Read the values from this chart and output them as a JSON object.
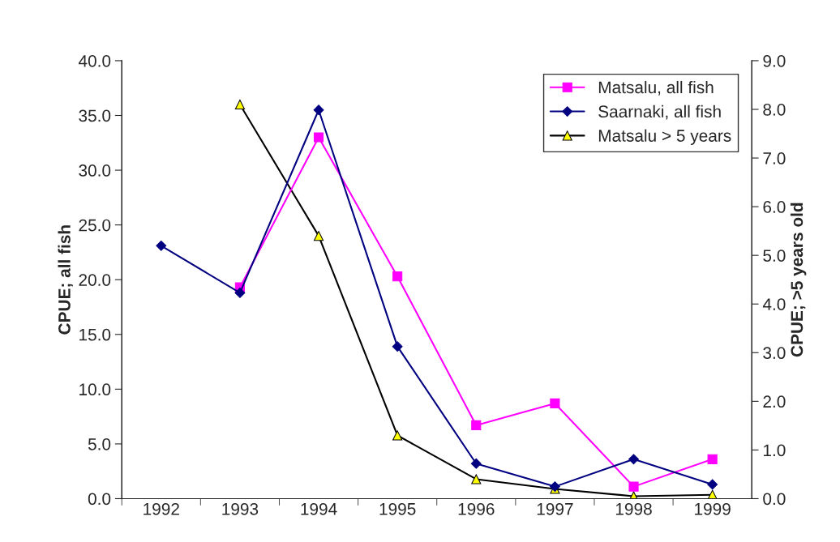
{
  "chart_data": {
    "type": "line",
    "ylabel": "CPUE; all fish",
    "y2label": "CPUE; >5 years old",
    "categories": [
      "1992",
      "1993",
      "1994",
      "1995",
      "1996",
      "1997",
      "1998",
      "1999"
    ],
    "series": [
      {
        "name": "Matsalu, all fish",
        "color": "#ff00ff",
        "marker": "square",
        "values": [
          null,
          19.3,
          33.0,
          20.3,
          6.7,
          8.7,
          1.1,
          3.6
        ]
      },
      {
        "name": "Saarnaki, all fish",
        "color": "#000080",
        "marker": "diamond",
        "values": [
          23.1,
          18.8,
          35.5,
          13.9,
          3.2,
          1.1,
          3.6,
          1.3
        ]
      },
      {
        "name": "Matsalu > 5 years",
        "color": "#000000",
        "marker": "triangle",
        "axis": "y2",
        "values": [
          null,
          8.1,
          5.4,
          1.3,
          0.4,
          0.2,
          0.05,
          0.08
        ]
      }
    ],
    "ylim": [
      0,
      40
    ],
    "yticks": [
      {
        "value": 0,
        "label": "0.0"
      },
      {
        "value": 5,
        "label": "5.0"
      },
      {
        "value": 10,
        "label": "10.0"
      },
      {
        "value": 15,
        "label": "15.0"
      },
      {
        "value": 20,
        "label": "20.0"
      },
      {
        "value": 25,
        "label": "25.0"
      },
      {
        "value": 30,
        "label": "30.0"
      },
      {
        "value": 35,
        "label": "35.0"
      },
      {
        "value": 40,
        "label": "40.0"
      }
    ],
    "y2lim": [
      0,
      9
    ],
    "y2ticks": [
      {
        "value": 0,
        "label": "0.0"
      },
      {
        "value": 1,
        "label": "1.0"
      },
      {
        "value": 2,
        "label": "2.0"
      },
      {
        "value": 3,
        "label": "3.0"
      },
      {
        "value": 4,
        "label": "4.0"
      },
      {
        "value": 5,
        "label": "5.0"
      },
      {
        "value": 6,
        "label": "6.0"
      },
      {
        "value": 7,
        "label": "7.0"
      },
      {
        "value": 8,
        "label": "8.0"
      },
      {
        "value": 9,
        "label": "9.0"
      }
    ],
    "grid": false,
    "legend": "top right",
    "line_style": "solid"
  }
}
